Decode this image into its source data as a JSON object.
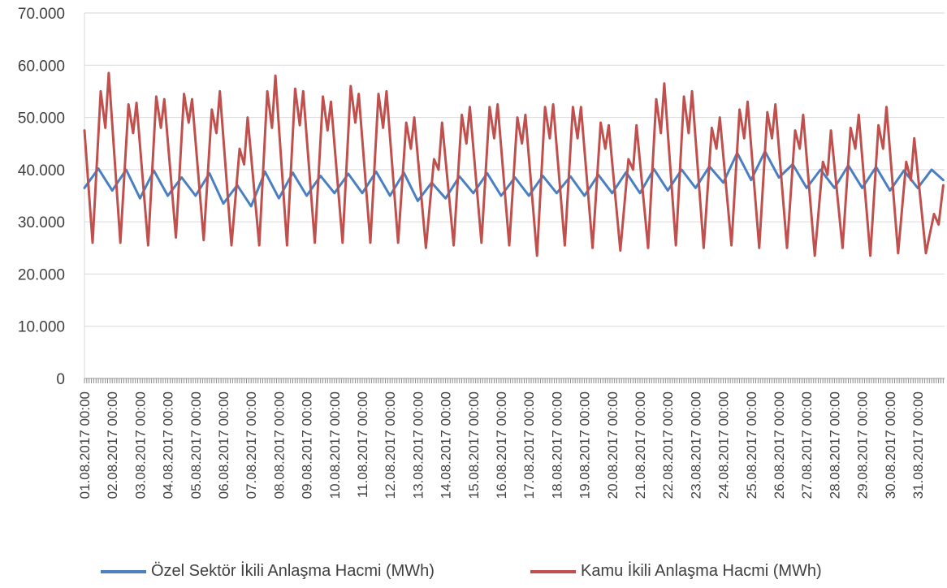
{
  "chart_data": {
    "type": "line",
    "title": "",
    "xlabel": "",
    "ylabel": "",
    "ylim": [
      0,
      70000
    ],
    "yticks": [
      "0",
      "10.000",
      "20.000",
      "30.000",
      "40.000",
      "50.000",
      "60.000",
      "70.000"
    ],
    "ytick_values": [
      0,
      10000,
      20000,
      30000,
      40000,
      50000,
      60000,
      70000
    ],
    "x_labels": [
      "01.08.2017 00:00",
      "02.08.2017 00:00",
      "03.08.2017 00:00",
      "04.08.2017 00:00",
      "05.08.2017 00:00",
      "06.08.2017 00:00",
      "07.08.2017 00:00",
      "08.08.2017 00:00",
      "09.08.2017 00:00",
      "10.08.2017 00:00",
      "11.08.2017 00:00",
      "12.08.2017 00:00",
      "13.08.2017 00:00",
      "14.08.2017 00:00",
      "15.08.2017 00:00",
      "16.08.2017 00:00",
      "17.08.2017 00:00",
      "18.08.2017 00:00",
      "19.08.2017 00:00",
      "20.08.2017 00:00",
      "21.08.2017 00:00",
      "22.08.2017 00:00",
      "23.08.2017 00:00",
      "24.08.2017 00:00",
      "25.08.2017 00:00",
      "26.08.2017 00:00",
      "27.08.2017 00:00",
      "28.08.2017 00:00",
      "29.08.2017 00:00",
      "30.08.2017 00:00",
      "31.08.2017 00:00"
    ],
    "grid": true,
    "legend_position": "bottom",
    "series": [
      {
        "name": "Özel Sektör İkili Anlaşma Hacmi (MWh)",
        "color": "#4a7fc1",
        "points": [
          [
            "01.08.2017 00:00",
            36500
          ],
          [
            "01.08.2017 12:00",
            40200
          ],
          [
            "02.08.2017 00:00",
            36000
          ],
          [
            "02.08.2017 12:00",
            40000
          ],
          [
            "03.08.2017 00:00",
            34500
          ],
          [
            "03.08.2017 12:00",
            39800
          ],
          [
            "04.08.2017 00:00",
            35000
          ],
          [
            "04.08.2017 12:00",
            38500
          ],
          [
            "05.08.2017 00:00",
            35000
          ],
          [
            "05.08.2017 12:00",
            39300
          ],
          [
            "06.08.2017 00:00",
            33500
          ],
          [
            "06.08.2017 12:00",
            37000
          ],
          [
            "07.08.2017 00:00",
            33000
          ],
          [
            "07.08.2017 12:00",
            39600
          ],
          [
            "08.08.2017 00:00",
            34500
          ],
          [
            "08.08.2017 12:00",
            39400
          ],
          [
            "09.08.2017 00:00",
            35000
          ],
          [
            "09.08.2017 12:00",
            38800
          ],
          [
            "10.08.2017 00:00",
            35500
          ],
          [
            "10.08.2017 12:00",
            39200
          ],
          [
            "11.08.2017 00:00",
            35500
          ],
          [
            "11.08.2017 12:00",
            39600
          ],
          [
            "12.08.2017 00:00",
            35000
          ],
          [
            "12.08.2017 12:00",
            39400
          ],
          [
            "13.08.2017 00:00",
            34000
          ],
          [
            "13.08.2017 12:00",
            37500
          ],
          [
            "14.08.2017 00:00",
            34500
          ],
          [
            "14.08.2017 12:00",
            38700
          ],
          [
            "15.08.2017 00:00",
            35500
          ],
          [
            "15.08.2017 12:00",
            39300
          ],
          [
            "16.08.2017 00:00",
            35000
          ],
          [
            "16.08.2017 12:00",
            38500
          ],
          [
            "17.08.2017 00:00",
            35000
          ],
          [
            "17.08.2017 12:00",
            38800
          ],
          [
            "18.08.2017 00:00",
            35500
          ],
          [
            "18.08.2017 12:00",
            38700
          ],
          [
            "19.08.2017 00:00",
            35000
          ],
          [
            "19.08.2017 12:00",
            39000
          ],
          [
            "20.08.2017 00:00",
            35500
          ],
          [
            "20.08.2017 12:00",
            39500
          ],
          [
            "21.08.2017 00:00",
            35500
          ],
          [
            "21.08.2017 12:00",
            40100
          ],
          [
            "22.08.2017 00:00",
            36000
          ],
          [
            "22.08.2017 12:00",
            40000
          ],
          [
            "23.08.2017 00:00",
            36500
          ],
          [
            "23.08.2017 12:00",
            40600
          ],
          [
            "24.08.2017 00:00",
            37500
          ],
          [
            "24.08.2017 12:00",
            43200
          ],
          [
            "25.08.2017 00:00",
            38000
          ],
          [
            "25.08.2017 12:00",
            43500
          ],
          [
            "26.08.2017 00:00",
            38500
          ],
          [
            "26.08.2017 12:00",
            41000
          ],
          [
            "27.08.2017 00:00",
            36500
          ],
          [
            "27.08.2017 12:00",
            40000
          ],
          [
            "28.08.2017 00:00",
            36500
          ],
          [
            "28.08.2017 12:00",
            40800
          ],
          [
            "29.08.2017 00:00",
            36500
          ],
          [
            "29.08.2017 12:00",
            40500
          ],
          [
            "30.08.2017 00:00",
            36000
          ],
          [
            "30.08.2017 12:00",
            39800
          ],
          [
            "31.08.2017 00:00",
            36500
          ],
          [
            "31.08.2017 12:00",
            40000
          ],
          [
            "31.08.2017 22:00",
            38000
          ]
        ]
      },
      {
        "name": "Kamu İkili Anlaşma Hacmi (MWh)",
        "color": "#c0504d",
        "points": [
          [
            "01.08.2017 00:00",
            47500
          ],
          [
            "01.08.2017 07:00",
            26000
          ],
          [
            "01.08.2017 14:00",
            55000
          ],
          [
            "01.08.2017 18:00",
            48000
          ],
          [
            "01.08.2017 21:00",
            58500
          ],
          [
            "02.08.2017 07:00",
            26000
          ],
          [
            "02.08.2017 14:00",
            52500
          ],
          [
            "02.08.2017 18:00",
            47000
          ],
          [
            "02.08.2017 21:00",
            52800
          ],
          [
            "03.08.2017 07:00",
            25500
          ],
          [
            "03.08.2017 14:00",
            54000
          ],
          [
            "03.08.2017 18:00",
            48000
          ],
          [
            "03.08.2017 21:00",
            53500
          ],
          [
            "04.08.2017 07:00",
            27000
          ],
          [
            "04.08.2017 14:00",
            54500
          ],
          [
            "04.08.2017 18:00",
            49000
          ],
          [
            "04.08.2017 21:00",
            53500
          ],
          [
            "05.08.2017 07:00",
            26500
          ],
          [
            "05.08.2017 14:00",
            51500
          ],
          [
            "05.08.2017 18:00",
            47000
          ],
          [
            "05.08.2017 21:00",
            55000
          ],
          [
            "06.08.2017 07:00",
            25500
          ],
          [
            "06.08.2017 14:00",
            44000
          ],
          [
            "06.08.2017 18:00",
            41000
          ],
          [
            "06.08.2017 21:00",
            50000
          ],
          [
            "07.08.2017 07:00",
            25500
          ],
          [
            "07.08.2017 14:00",
            55000
          ],
          [
            "07.08.2017 18:00",
            48000
          ],
          [
            "07.08.2017 21:00",
            58000
          ],
          [
            "08.08.2017 07:00",
            25500
          ],
          [
            "08.08.2017 14:00",
            55500
          ],
          [
            "08.08.2017 18:00",
            48500
          ],
          [
            "08.08.2017 21:00",
            55000
          ],
          [
            "09.08.2017 07:00",
            26000
          ],
          [
            "09.08.2017 14:00",
            54000
          ],
          [
            "09.08.2017 18:00",
            47500
          ],
          [
            "09.08.2017 21:00",
            53000
          ],
          [
            "10.08.2017 07:00",
            26000
          ],
          [
            "10.08.2017 14:00",
            56000
          ],
          [
            "10.08.2017 18:00",
            49000
          ],
          [
            "10.08.2017 21:00",
            54500
          ],
          [
            "11.08.2017 07:00",
            26000
          ],
          [
            "11.08.2017 14:00",
            54500
          ],
          [
            "11.08.2017 18:00",
            48000
          ],
          [
            "11.08.2017 21:00",
            55000
          ],
          [
            "12.08.2017 07:00",
            26000
          ],
          [
            "12.08.2017 14:00",
            49000
          ],
          [
            "12.08.2017 18:00",
            44000
          ],
          [
            "12.08.2017 21:00",
            50000
          ],
          [
            "13.08.2017 07:00",
            25000
          ],
          [
            "13.08.2017 14:00",
            42000
          ],
          [
            "13.08.2017 18:00",
            40000
          ],
          [
            "13.08.2017 21:00",
            49000
          ],
          [
            "14.08.2017 07:00",
            25500
          ],
          [
            "14.08.2017 14:00",
            50500
          ],
          [
            "14.08.2017 18:00",
            45000
          ],
          [
            "14.08.2017 21:00",
            52000
          ],
          [
            "15.08.2017 07:00",
            26000
          ],
          [
            "15.08.2017 14:00",
            52000
          ],
          [
            "15.08.2017 18:00",
            46000
          ],
          [
            "15.08.2017 21:00",
            52500
          ],
          [
            "16.08.2017 07:00",
            25500
          ],
          [
            "16.08.2017 14:00",
            50000
          ],
          [
            "16.08.2017 18:00",
            45000
          ],
          [
            "16.08.2017 21:00",
            50500
          ],
          [
            "17.08.2017 07:00",
            23500
          ],
          [
            "17.08.2017 14:00",
            52000
          ],
          [
            "17.08.2017 18:00",
            46000
          ],
          [
            "17.08.2017 21:00",
            52500
          ],
          [
            "18.08.2017 07:00",
            25500
          ],
          [
            "18.08.2017 14:00",
            52000
          ],
          [
            "18.08.2017 18:00",
            46000
          ],
          [
            "18.08.2017 21:00",
            52000
          ],
          [
            "19.08.2017 07:00",
            25000
          ],
          [
            "19.08.2017 14:00",
            49000
          ],
          [
            "19.08.2017 18:00",
            44000
          ],
          [
            "19.08.2017 21:00",
            48500
          ],
          [
            "20.08.2017 07:00",
            24500
          ],
          [
            "20.08.2017 14:00",
            42000
          ],
          [
            "20.08.2017 18:00",
            40000
          ],
          [
            "20.08.2017 21:00",
            48500
          ],
          [
            "21.08.2017 07:00",
            25000
          ],
          [
            "21.08.2017 14:00",
            53500
          ],
          [
            "21.08.2017 18:00",
            47000
          ],
          [
            "21.08.2017 21:00",
            56500
          ],
          [
            "22.08.2017 07:00",
            25500
          ],
          [
            "22.08.2017 14:00",
            54000
          ],
          [
            "22.08.2017 18:00",
            47000
          ],
          [
            "22.08.2017 21:00",
            55000
          ],
          [
            "23.08.2017 07:00",
            25000
          ],
          [
            "23.08.2017 14:00",
            48000
          ],
          [
            "23.08.2017 18:00",
            44000
          ],
          [
            "23.08.2017 21:00",
            50000
          ],
          [
            "24.08.2017 07:00",
            25500
          ],
          [
            "24.08.2017 14:00",
            51500
          ],
          [
            "24.08.2017 18:00",
            46000
          ],
          [
            "24.08.2017 21:00",
            53000
          ],
          [
            "25.08.2017 07:00",
            25000
          ],
          [
            "25.08.2017 14:00",
            51000
          ],
          [
            "25.08.2017 18:00",
            46000
          ],
          [
            "25.08.2017 21:00",
            52500
          ],
          [
            "26.08.2017 07:00",
            25000
          ],
          [
            "26.08.2017 14:00",
            47500
          ],
          [
            "26.08.2017 18:00",
            44000
          ],
          [
            "26.08.2017 21:00",
            50500
          ],
          [
            "27.08.2017 07:00",
            23500
          ],
          [
            "27.08.2017 14:00",
            41500
          ],
          [
            "27.08.2017 18:00",
            39000
          ],
          [
            "27.08.2017 21:00",
            47500
          ],
          [
            "28.08.2017 07:00",
            25000
          ],
          [
            "28.08.2017 14:00",
            48000
          ],
          [
            "28.08.2017 18:00",
            44000
          ],
          [
            "28.08.2017 21:00",
            50500
          ],
          [
            "29.08.2017 07:00",
            23500
          ],
          [
            "29.08.2017 14:00",
            48500
          ],
          [
            "29.08.2017 18:00",
            44000
          ],
          [
            "29.08.2017 21:00",
            52000
          ],
          [
            "30.08.2017 07:00",
            24000
          ],
          [
            "30.08.2017 14:00",
            41500
          ],
          [
            "30.08.2017 18:00",
            38000
          ],
          [
            "30.08.2017 21:00",
            46000
          ],
          [
            "31.08.2017 07:00",
            24000
          ],
          [
            "31.08.2017 14:00",
            31500
          ],
          [
            "31.08.2017 18:00",
            29500
          ],
          [
            "31.08.2017 22:00",
            37000
          ]
        ]
      }
    ]
  }
}
